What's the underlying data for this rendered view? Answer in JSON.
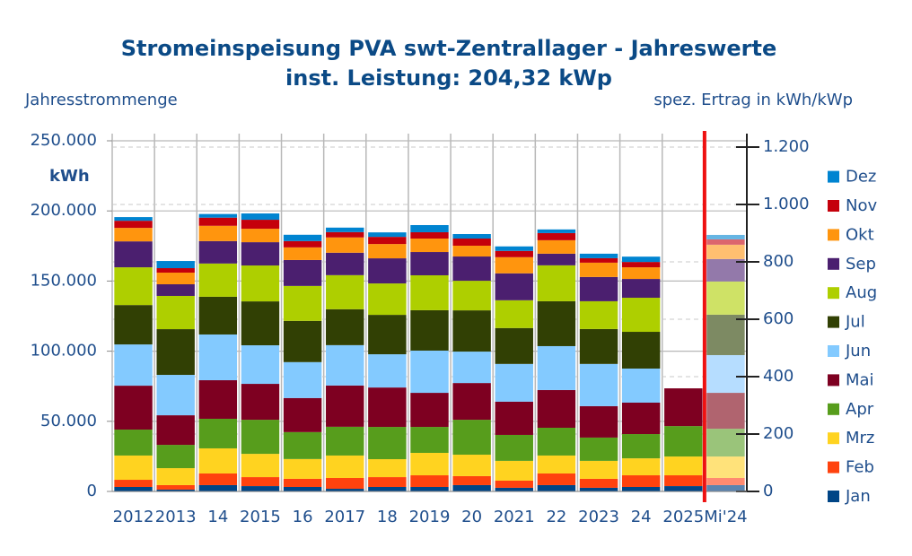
{
  "chart_data": {
    "type": "stacked_bar",
    "title": "Stromeinspeisung PVA swt-Zentrallager - Jahreswerte",
    "subtitle": "inst. Leistung: 204,32 kWp",
    "y_label": "Jahresstrommenge",
    "y_unit": "kWh",
    "y2_label": "spez. Ertrag in kWh/kWp",
    "categories": [
      "2012",
      "2013",
      "14",
      "2015",
      "16",
      "2017",
      "18",
      "2019",
      "20",
      "2021",
      "22",
      "2023",
      "24",
      "2025",
      "Mi'24"
    ],
    "ylim": [
      0,
      250000
    ],
    "yticks": [
      0,
      {
        "value": 50000,
        "label": "50.000"
      },
      {
        "value": 100000,
        "label": "100.000"
      },
      {
        "value": 150000,
        "label": "150.000"
      },
      {
        "value": 200000,
        "label": "200.000"
      },
      {
        "value": 250000,
        "label": "250.000"
      }
    ],
    "y2lim": [
      0,
      1222
    ],
    "y2ticks": [
      0,
      200,
      400,
      600,
      800,
      {
        "value": 1000,
        "label": "1.000"
      },
      {
        "value": 1200,
        "label": "1.200"
      }
    ],
    "grid": true,
    "legend": "right",
    "series": [
      {
        "name": "Jan",
        "color": "#004586",
        "avg_color": "#5b84b0",
        "values": [
          3200,
          1300,
          4500,
          3800,
          3200,
          1900,
          3200,
          3200,
          4500,
          2600,
          4500,
          2600,
          3200,
          3800,
          4500
        ]
      },
      {
        "name": "Feb",
        "color": "#ff420e",
        "avg_color": "#ff8a70",
        "values": [
          5100,
          3200,
          8300,
          6400,
          5800,
          7700,
          7000,
          8300,
          6400,
          5100,
          8300,
          6400,
          8300,
          7700,
          5100
        ]
      },
      {
        "name": "Mrz",
        "color": "#ffd320",
        "avg_color": "#ffe27a",
        "values": [
          17300,
          12100,
          17900,
          16600,
          14100,
          16000,
          12800,
          16000,
          15300,
          14100,
          12800,
          12800,
          12100,
          13400,
          15300
        ]
      },
      {
        "name": "Apr",
        "color": "#579d1c",
        "avg_color": "#9ac47a",
        "values": [
          18500,
          16600,
          21100,
          24300,
          19200,
          20500,
          23000,
          18500,
          24900,
          18500,
          19800,
          16600,
          17300,
          21700,
          19800
        ]
      },
      {
        "name": "Mai",
        "color": "#7e0021",
        "avg_color": "#b0646f",
        "values": [
          31300,
          21100,
          27500,
          25600,
          24300,
          29400,
          28100,
          24300,
          26200,
          23700,
          26900,
          22400,
          22400,
          26900,
          25600
        ]
      },
      {
        "name": "Jun",
        "color": "#83caff",
        "avg_color": "#b6ddff",
        "values": [
          29400,
          28800,
          32600,
          27500,
          25600,
          28800,
          23700,
          30100,
          22400,
          26900,
          31300,
          30100,
          24300,
          null,
          26900
        ]
      },
      {
        "name": "Jul",
        "color": "#314004",
        "avg_color": "#7d8a63",
        "values": [
          28100,
          32600,
          26900,
          31300,
          29400,
          25600,
          28100,
          28800,
          29400,
          25600,
          32000,
          24900,
          26200,
          null,
          28800
        ]
      },
      {
        "name": "Aug",
        "color": "#aecf00",
        "avg_color": "#cfe266",
        "values": [
          26900,
          23700,
          23700,
          25600,
          24900,
          24300,
          22400,
          24900,
          21100,
          19800,
          25600,
          19800,
          24300,
          null,
          23700
        ]
      },
      {
        "name": "Sep",
        "color": "#4b1f6f",
        "avg_color": "#9379aa",
        "values": [
          18500,
          8300,
          16000,
          16600,
          18500,
          16000,
          17900,
          16600,
          17300,
          19200,
          8300,
          17300,
          13400,
          null,
          16000
        ]
      },
      {
        "name": "Okt",
        "color": "#ff950e",
        "avg_color": "#ffbf70",
        "values": [
          9600,
          8300,
          10900,
          9600,
          9000,
          10900,
          10200,
          9600,
          7700,
          11500,
          9600,
          10200,
          8300,
          null,
          10200
        ]
      },
      {
        "name": "Nov",
        "color": "#c5000b",
        "avg_color": "#dc666d",
        "values": [
          5100,
          3200,
          5800,
          6400,
          4500,
          3800,
          5100,
          4500,
          5100,
          4500,
          5100,
          3200,
          3800,
          null,
          3800
        ]
      },
      {
        "name": "Dez",
        "color": "#0084d1",
        "avg_color": "#66b5e3",
        "values": [
          2600,
          5100,
          2600,
          4500,
          4500,
          3200,
          3200,
          5100,
          3200,
          3200,
          2600,
          3200,
          3800,
          null,
          3200
        ]
      }
    ]
  }
}
